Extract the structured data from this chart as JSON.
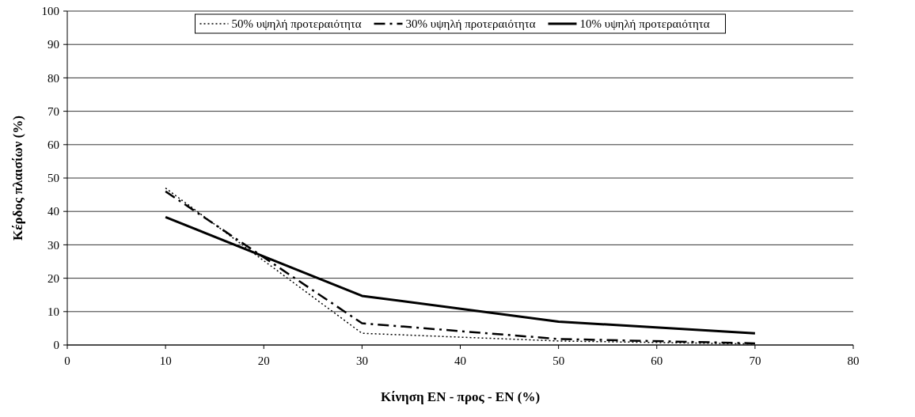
{
  "chart_data": {
    "type": "line",
    "xlabel": "Κίνηση ΕΝ - προς - ΕΝ (%)",
    "ylabel": "Κέρδος πλαισίων (%)",
    "x": [
      10,
      30,
      50,
      70
    ],
    "series": [
      {
        "name": "50% υψηλή προτεραιότητα",
        "color": "#000000",
        "line_style": "dotted",
        "values": [
          47,
          3.5,
          1.2,
          0.3
        ]
      },
      {
        "name": "30% υψηλή προτεραιότητα",
        "color": "#000000",
        "line_style": "dashed",
        "values": [
          46,
          6.5,
          1.8,
          0.5
        ]
      },
      {
        "name": "10% υψηλή προτεραιότητα",
        "color": "#000000",
        "line_style": "solid",
        "values": [
          38.3,
          14.7,
          7,
          3.5
        ]
      }
    ],
    "xlim": [
      0,
      80
    ],
    "xticks": [
      0,
      10,
      20,
      30,
      40,
      50,
      60,
      70,
      80
    ],
    "ylim": [
      0,
      100
    ],
    "yticks": [
      0,
      10,
      20,
      30,
      40,
      50,
      60,
      70,
      80,
      90,
      100
    ],
    "grid": "y",
    "legend": "top",
    "marker": "none"
  }
}
